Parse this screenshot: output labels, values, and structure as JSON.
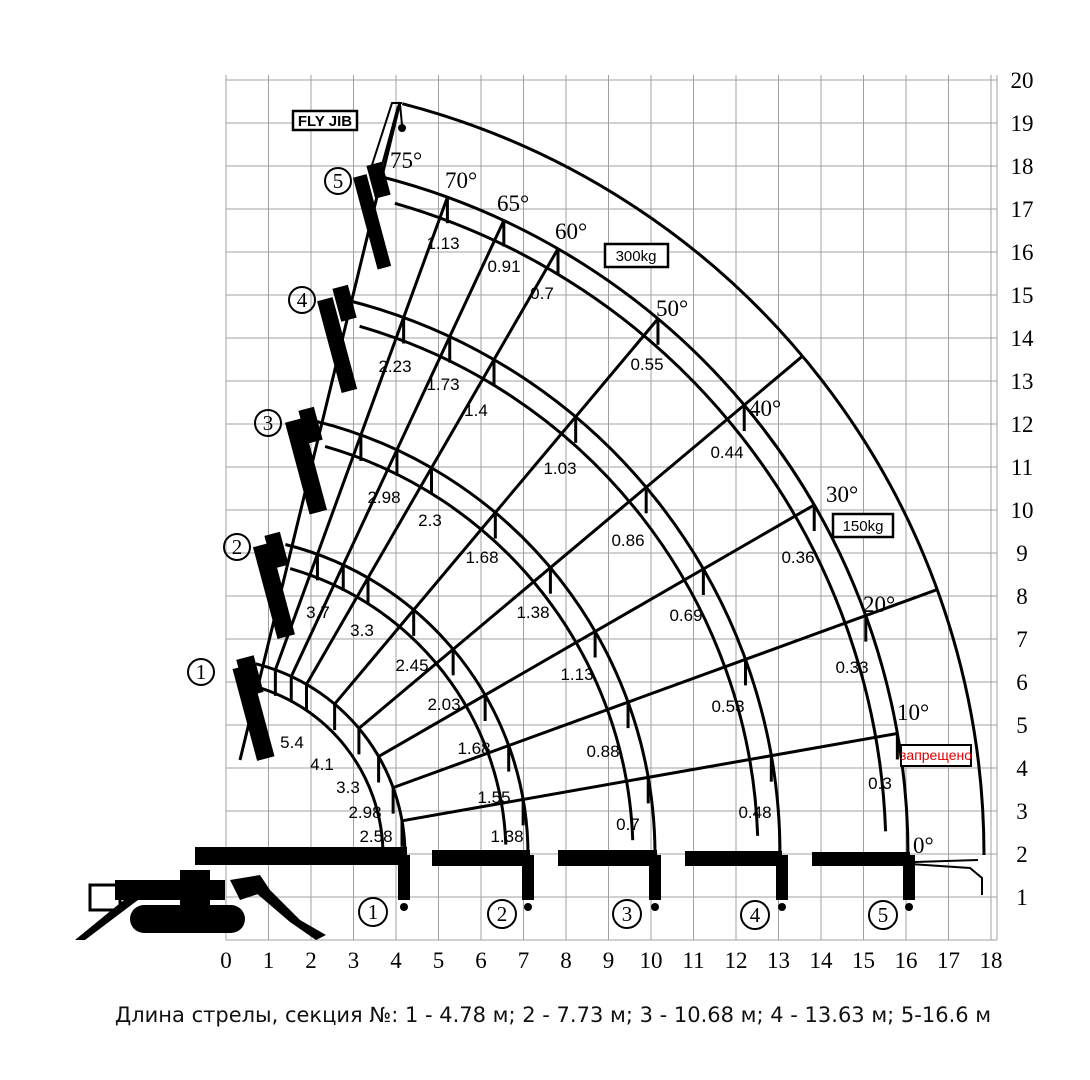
{
  "x_axis_ticks": [
    "0",
    "1",
    "2",
    "3",
    "4",
    "5",
    "6",
    "7",
    "8",
    "9",
    "10",
    "11",
    "12",
    "13",
    "14",
    "15",
    "16",
    "17",
    "18"
  ],
  "y_axis_ticks": [
    "1",
    "2",
    "3",
    "4",
    "5",
    "6",
    "7",
    "8",
    "9",
    "10",
    "11",
    "12",
    "13",
    "14",
    "15",
    "16",
    "17",
    "18",
    "19",
    "20"
  ],
  "angles": [
    "75°",
    "70°",
    "65°",
    "60°",
    "50°",
    "40°",
    "30°",
    "20°",
    "10°",
    "0°"
  ],
  "sections": [
    "1",
    "2",
    "3",
    "4",
    "5"
  ],
  "boxes": {
    "fly_jib": "FLY JIB",
    "jib_300": "300kg",
    "jib_150": "150kg",
    "forbidden": "запрещено"
  },
  "capacities": {
    "section_1": [
      "5.4",
      "4.1",
      "3.3",
      "2.98",
      "2.58"
    ],
    "section_2": [
      "3.7",
      "3.3",
      "2.45",
      "2.03",
      "1.68",
      "1.55",
      "1.38"
    ],
    "section_3": [
      "2.98",
      "2.3",
      "1.68",
      "1.38",
      "1.13",
      "0.88",
      "0.7"
    ],
    "section_4": [
      "2.23",
      "1.73",
      "1.4",
      "1.03",
      "0.86",
      "0.69",
      "0.53",
      "0.48"
    ],
    "section_5": [
      "1.13",
      "0.91",
      "0.7",
      "0.55",
      "0.44",
      "0.36",
      "0.33",
      "0.3"
    ]
  },
  "caption": "Длина стрелы, секция №: 1 -  4.78 м; 2 - 7.73 м; 3 - 10.68 м; 4 - 13.63 м; 5-16.6 м",
  "colors": {
    "lines": "#000000",
    "grid": "#a0a0a0",
    "forbidden": "#e00000"
  }
}
